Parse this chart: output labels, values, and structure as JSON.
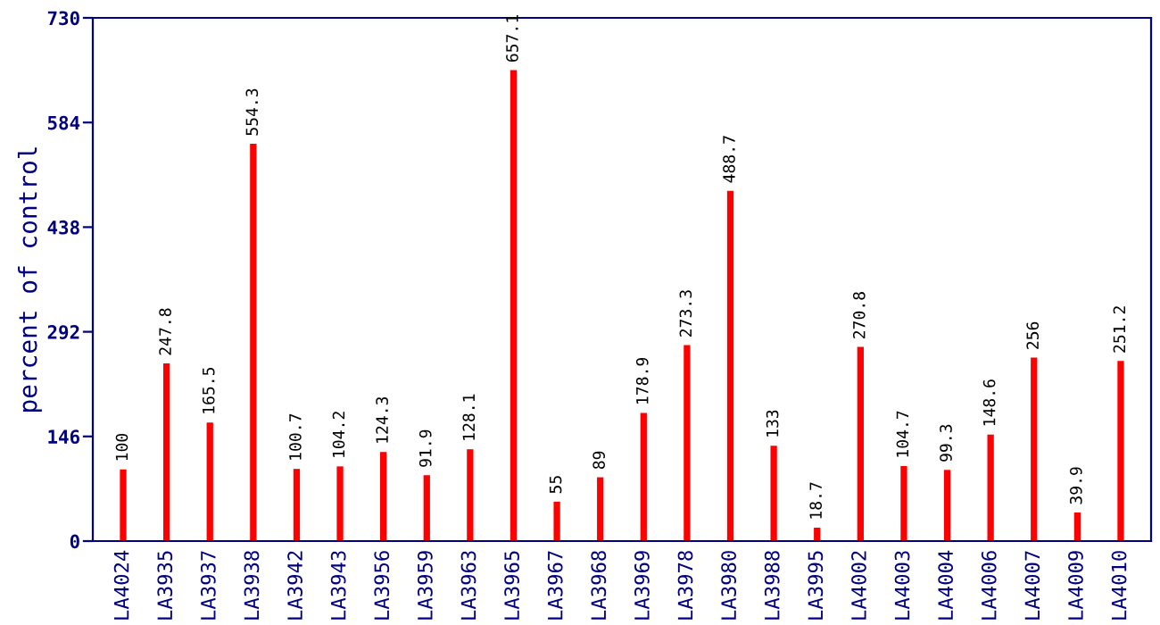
{
  "chart_data": {
    "type": "bar",
    "ylabel": "percent of control",
    "categories": [
      "LA4024",
      "LA3935",
      "LA3937",
      "LA3938",
      "LA3942",
      "LA3943",
      "LA3956",
      "LA3959",
      "LA3963",
      "LA3965",
      "LA3967",
      "LA3968",
      "LA3969",
      "LA3978",
      "LA3980",
      "LA3988",
      "LA3995",
      "LA4002",
      "LA4003",
      "LA4004",
      "LA4006",
      "LA4007",
      "LA4009",
      "LA4010"
    ],
    "values": [
      100,
      247.8,
      165.5,
      554.3,
      100.7,
      104.2,
      124.3,
      91.9,
      128.1,
      657.1,
      55,
      89,
      178.9,
      273.3,
      488.7,
      133,
      18.7,
      270.8,
      104.7,
      99.3,
      148.6,
      256,
      39.9,
      251.2
    ],
    "color": "#ff0000",
    "ylim": [
      0,
      730
    ],
    "yticks": [
      0,
      146,
      292,
      438,
      584,
      730
    ],
    "data_labels": true,
    "grid": false,
    "legend": false
  }
}
